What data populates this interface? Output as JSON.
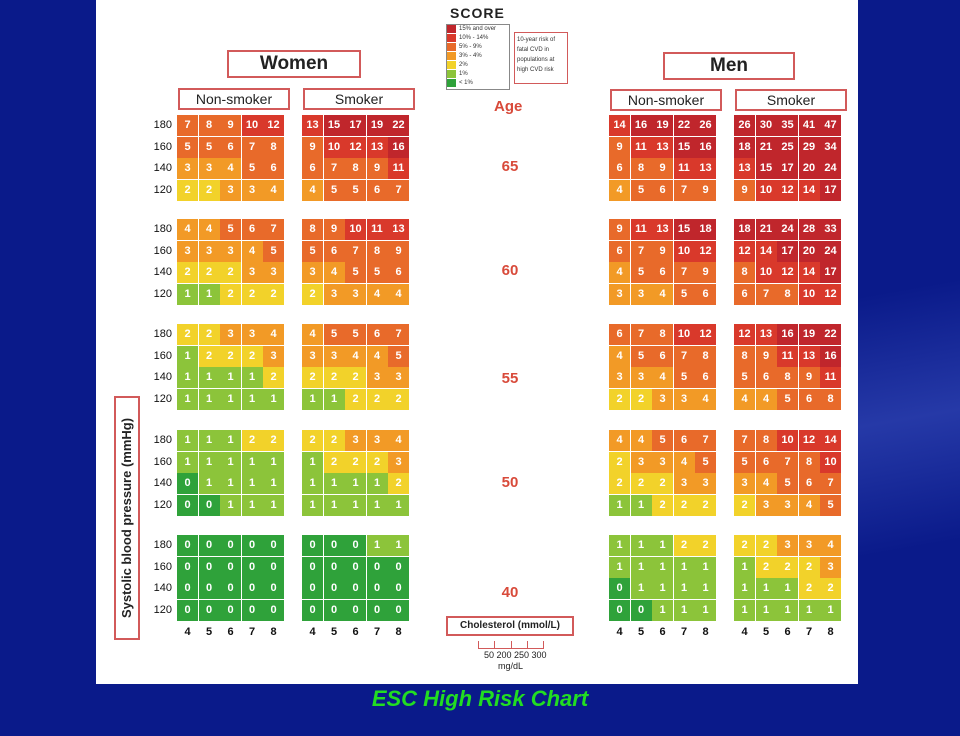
{
  "caption": "ESC High Risk Chart",
  "score_logo": "SCORE",
  "legend": {
    "items": [
      {
        "label": "15% and over",
        "color": "#c0262c"
      },
      {
        "label": "10% - 14%",
        "color": "#d9392b"
      },
      {
        "label": "5% - 9%",
        "color": "#e86a2a"
      },
      {
        "label": "3% - 4%",
        "color": "#f29a26"
      },
      {
        "label": "2%",
        "color": "#f2d22a"
      },
      {
        "label": "1%",
        "color": "#8cc43a"
      },
      {
        "label": "< 1%",
        "color": "#2fa23a"
      }
    ],
    "note": "10-year risk of fatal CVD in populations at high CVD risk"
  },
  "labels": {
    "women": "Women",
    "men": "Men",
    "non_smoker": "Non-smoker",
    "smoker": "Smoker",
    "age": "Age",
    "ylabel": "Systolic blood pressure (mmHg)",
    "cholesterol": "Cholesterol (mmol/L)",
    "mg_ticks": "50 200 250 300",
    "mg_unit": "mg/dL"
  },
  "chart_data": {
    "type": "heatmap",
    "title": "ESC High Risk Chart",
    "ylabel": "Systolic blood pressure (mmHg)",
    "xlabel": "Cholesterol (mmol/L)",
    "cholesterol": [
      4,
      5,
      6,
      7,
      8
    ],
    "sbp": [
      180,
      160,
      140,
      120
    ],
    "ages": [
      65,
      60,
      55,
      50,
      40
    ],
    "panels": {
      "women_non_smoker": [
        [
          [
            7,
            8,
            9,
            10,
            12
          ],
          [
            5,
            5,
            6,
            7,
            8
          ],
          [
            3,
            3,
            4,
            5,
            6
          ],
          [
            2,
            2,
            3,
            3,
            4
          ]
        ],
        [
          [
            4,
            4,
            5,
            6,
            7
          ],
          [
            3,
            3,
            3,
            4,
            5
          ],
          [
            2,
            2,
            2,
            3,
            3
          ],
          [
            1,
            1,
            2,
            2,
            2
          ]
        ],
        [
          [
            2,
            2,
            3,
            3,
            4
          ],
          [
            1,
            2,
            2,
            2,
            3
          ],
          [
            1,
            1,
            1,
            1,
            2
          ],
          [
            1,
            1,
            1,
            1,
            1
          ]
        ],
        [
          [
            1,
            1,
            1,
            2,
            2
          ],
          [
            1,
            1,
            1,
            1,
            1
          ],
          [
            0,
            1,
            1,
            1,
            1
          ],
          [
            0,
            0,
            1,
            1,
            1
          ]
        ],
        [
          [
            0,
            0,
            0,
            0,
            0
          ],
          [
            0,
            0,
            0,
            0,
            0
          ],
          [
            0,
            0,
            0,
            0,
            0
          ],
          [
            0,
            0,
            0,
            0,
            0
          ]
        ]
      ],
      "women_smoker": [
        [
          [
            13,
            15,
            17,
            19,
            22
          ],
          [
            9,
            10,
            12,
            13,
            16
          ],
          [
            6,
            7,
            8,
            9,
            11
          ],
          [
            4,
            5,
            5,
            6,
            7
          ]
        ],
        [
          [
            8,
            9,
            10,
            11,
            13
          ],
          [
            5,
            6,
            7,
            8,
            9
          ],
          [
            3,
            4,
            5,
            5,
            6
          ],
          [
            2,
            3,
            3,
            4,
            4
          ]
        ],
        [
          [
            4,
            5,
            5,
            6,
            7
          ],
          [
            3,
            3,
            4,
            4,
            5
          ],
          [
            2,
            2,
            2,
            3,
            3
          ],
          [
            1,
            1,
            2,
            2,
            2
          ]
        ],
        [
          [
            2,
            2,
            3,
            3,
            4
          ],
          [
            1,
            2,
            2,
            2,
            3
          ],
          [
            1,
            1,
            1,
            1,
            2
          ],
          [
            1,
            1,
            1,
            1,
            1
          ]
        ],
        [
          [
            0,
            0,
            0,
            1,
            1
          ],
          [
            0,
            0,
            0,
            0,
            0
          ],
          [
            0,
            0,
            0,
            0,
            0
          ],
          [
            0,
            0,
            0,
            0,
            0
          ]
        ]
      ],
      "men_non_smoker": [
        [
          [
            14,
            16,
            19,
            22,
            26
          ],
          [
            9,
            11,
            13,
            15,
            16
          ],
          [
            6,
            8,
            9,
            11,
            13
          ],
          [
            4,
            5,
            6,
            7,
            9
          ]
        ],
        [
          [
            9,
            11,
            13,
            15,
            18
          ],
          [
            6,
            7,
            9,
            10,
            12
          ],
          [
            4,
            5,
            6,
            7,
            9
          ],
          [
            3,
            3,
            4,
            5,
            6
          ]
        ],
        [
          [
            6,
            7,
            8,
            10,
            12
          ],
          [
            4,
            5,
            6,
            7,
            8
          ],
          [
            3,
            3,
            4,
            5,
            6
          ],
          [
            2,
            2,
            3,
            3,
            4
          ]
        ],
        [
          [
            4,
            4,
            5,
            6,
            7
          ],
          [
            2,
            3,
            3,
            4,
            5
          ],
          [
            2,
            2,
            2,
            3,
            3
          ],
          [
            1,
            1,
            2,
            2,
            2
          ]
        ],
        [
          [
            1,
            1,
            1,
            2,
            2
          ],
          [
            1,
            1,
            1,
            1,
            1
          ],
          [
            0,
            1,
            1,
            1,
            1
          ],
          [
            0,
            0,
            1,
            1,
            1
          ]
        ]
      ],
      "men_smoker": [
        [
          [
            26,
            30,
            35,
            41,
            47
          ],
          [
            18,
            21,
            25,
            29,
            34
          ],
          [
            13,
            15,
            17,
            20,
            24
          ],
          [
            9,
            10,
            12,
            14,
            17
          ]
        ],
        [
          [
            18,
            21,
            24,
            28,
            33
          ],
          [
            12,
            14,
            17,
            20,
            24
          ],
          [
            8,
            10,
            12,
            14,
            17
          ],
          [
            6,
            7,
            8,
            10,
            12
          ]
        ],
        [
          [
            12,
            13,
            16,
            19,
            22
          ],
          [
            8,
            9,
            11,
            13,
            16
          ],
          [
            5,
            6,
            8,
            9,
            11
          ],
          [
            4,
            4,
            5,
            6,
            8
          ]
        ],
        [
          [
            7,
            8,
            10,
            12,
            14
          ],
          [
            5,
            6,
            7,
            8,
            10
          ],
          [
            3,
            4,
            5,
            6,
            7
          ],
          [
            2,
            3,
            3,
            4,
            5
          ]
        ],
        [
          [
            2,
            2,
            3,
            3,
            4
          ],
          [
            1,
            2,
            2,
            2,
            3
          ],
          [
            1,
            1,
            1,
            2,
            2
          ],
          [
            1,
            1,
            1,
            1,
            1
          ]
        ]
      ]
    }
  }
}
